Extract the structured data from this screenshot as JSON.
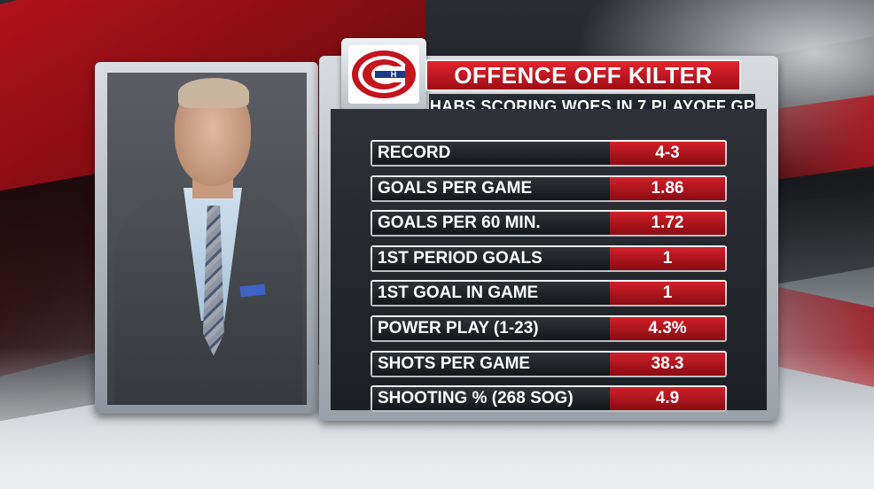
{
  "graphic": {
    "title": "OFFENCE OFF KILTER",
    "subtitle": "HABS SCORING WOES IN 7 PLAYOFF GP",
    "logo_icon": "canadiens-logo-icon"
  },
  "colors": {
    "accent_red": "#c4141d",
    "logo_blue": "#1d3a8a",
    "panel_dark": "#1c1f23"
  },
  "stats": [
    {
      "label": "RECORD",
      "value": "4-3"
    },
    {
      "label": "GOALS PER GAME",
      "value": "1.86"
    },
    {
      "label": "GOALS PER 60 MIN.",
      "value": "1.72"
    },
    {
      "label": "1ST PERIOD GOALS",
      "value": "1"
    },
    {
      "label": "1ST GOAL IN GAME",
      "value": "1"
    },
    {
      "label": "POWER PLAY (1-23)",
      "value": "4.3%"
    },
    {
      "label": "SHOTS PER GAME",
      "value": "38.3"
    },
    {
      "label": "SHOOTING % (268 SOG)",
      "value": "4.9"
    }
  ]
}
